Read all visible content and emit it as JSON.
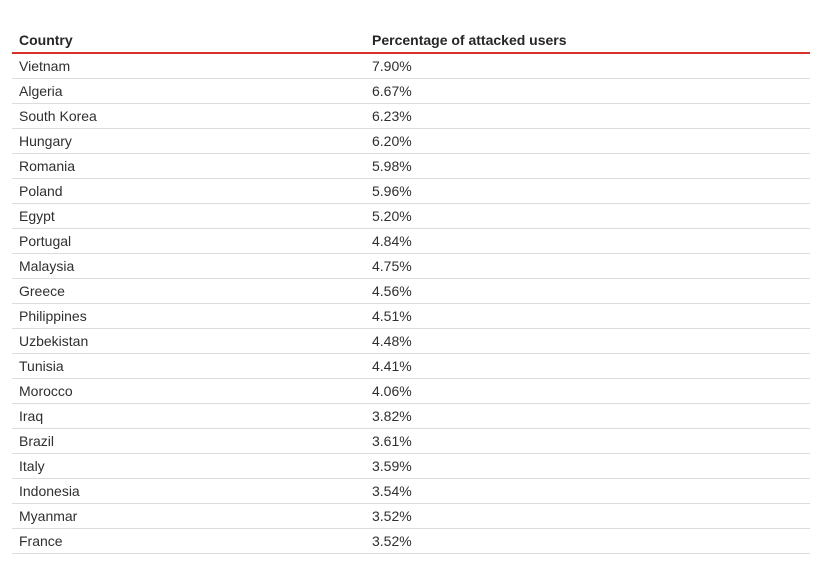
{
  "table": {
    "headers": {
      "country": "Country",
      "percentage": "Percentage of attacked users"
    },
    "rows": [
      {
        "country": "Vietnam",
        "percentage": "7.90%"
      },
      {
        "country": "Algeria",
        "percentage": "6.67%"
      },
      {
        "country": "South Korea",
        "percentage": "6.23%"
      },
      {
        "country": "Hungary",
        "percentage": "6.20%"
      },
      {
        "country": "Romania",
        "percentage": "5.98%"
      },
      {
        "country": "Poland",
        "percentage": "5.96%"
      },
      {
        "country": "Egypt",
        "percentage": "5.20%"
      },
      {
        "country": "Portugal",
        "percentage": "4.84%"
      },
      {
        "country": "Malaysia",
        "percentage": "4.75%"
      },
      {
        "country": "Greece",
        "percentage": "4.56%"
      },
      {
        "country": "Philippines",
        "percentage": "4.51%"
      },
      {
        "country": "Uzbekistan",
        "percentage": "4.48%"
      },
      {
        "country": "Tunisia",
        "percentage": "4.41%"
      },
      {
        "country": "Morocco",
        "percentage": "4.06%"
      },
      {
        "country": "Iraq",
        "percentage": "3.82%"
      },
      {
        "country": "Brazil",
        "percentage": "3.61%"
      },
      {
        "country": "Italy",
        "percentage": "3.59%"
      },
      {
        "country": "Indonesia",
        "percentage": "3.54%"
      },
      {
        "country": "Myanmar",
        "percentage": "3.52%"
      },
      {
        "country": "France",
        "percentage": "3.52%"
      }
    ]
  },
  "colors": {
    "header_rule": "#d9302b",
    "row_rule": "#dcdcdc",
    "text": "#2f2f2f"
  }
}
